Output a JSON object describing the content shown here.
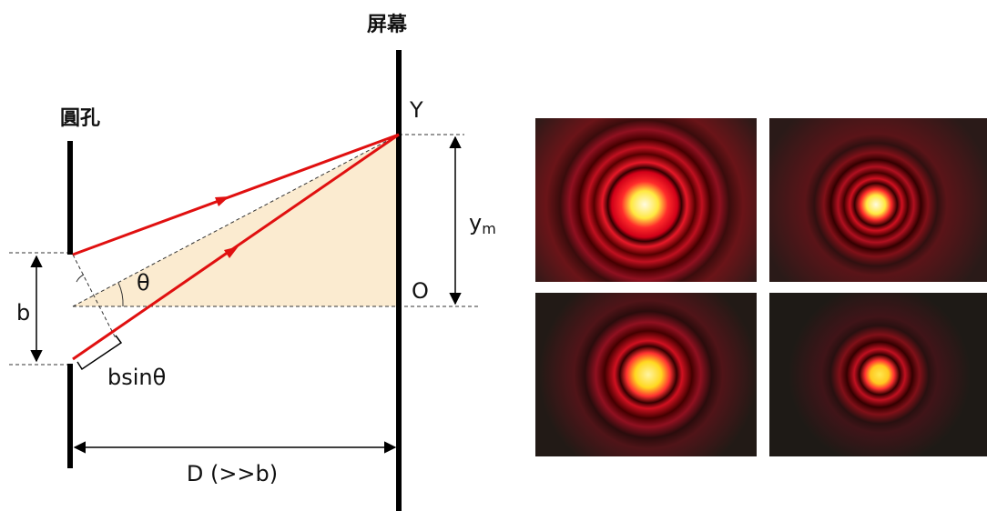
{
  "labels": {
    "screen": "屏幕",
    "aperture": "圓孔",
    "point_y": "Y",
    "y_m": "y",
    "y_m_sub": "m",
    "origin": "O",
    "angle": "θ",
    "width": "b",
    "path_diff": "bsinθ",
    "distance": "D (>>b)"
  }
}
